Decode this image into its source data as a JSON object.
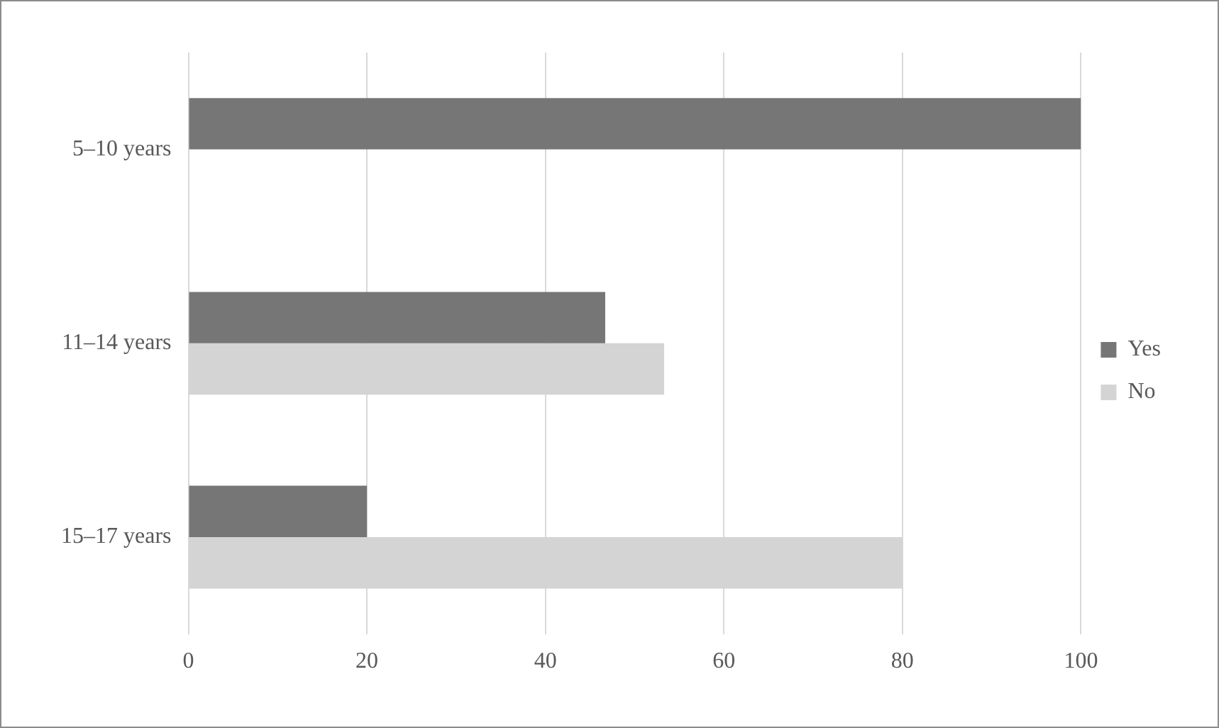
{
  "chart_data": {
    "type": "bar",
    "orientation": "horizontal",
    "categories": [
      "5–10 years",
      "11–14 years",
      "15–17 years"
    ],
    "series": [
      {
        "name": "Yes",
        "color": "#767676",
        "values": [
          100,
          46.7,
          20
        ]
      },
      {
        "name": "No",
        "color": "#d4d4d4",
        "values": [
          0,
          53.3,
          80
        ]
      }
    ],
    "xlim": [
      0,
      100
    ],
    "xticks": [
      0,
      20,
      40,
      60,
      80,
      100
    ],
    "grid": "x",
    "legend": "right"
  }
}
